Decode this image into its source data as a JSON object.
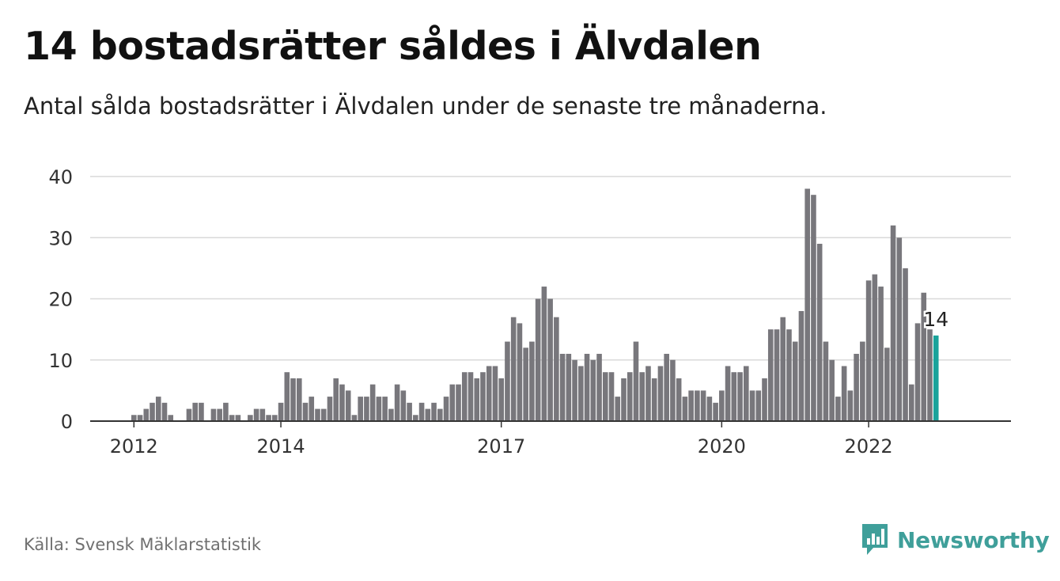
{
  "title": "14 bostadsrätter såldes i Älvdalen",
  "subtitle": "Antal sålda bostadsrätter i Älvdalen under de senaste tre månaderna.",
  "source": "Källa: Svensk Mäklarstatistik",
  "brand": {
    "name": "Newsworthy",
    "icon": "newsworthy-logo-icon",
    "color": "#3f9f9a"
  },
  "colors": {
    "bar": "#78777c",
    "highlight": "#1aa39b",
    "grid": "#d9d9d9",
    "axis": "#333333"
  },
  "chart_data": {
    "type": "bar",
    "x_axis": "monthly, 2012 to 2022",
    "ylim": [
      0,
      40
    ],
    "yticks": [
      0,
      10,
      20,
      30,
      40
    ],
    "xtick_labels": [
      {
        "label": "2012",
        "index": 7
      },
      {
        "label": "2014",
        "index": 31
      },
      {
        "label": "2017",
        "index": 67
      },
      {
        "label": "2020",
        "index": 103
      },
      {
        "label": "2022",
        "index": 127
      }
    ],
    "highlight_label": "14",
    "values": [
      0,
      0,
      0,
      0,
      0,
      0,
      0,
      1,
      1,
      2,
      3,
      4,
      3,
      1,
      0,
      0,
      2,
      3,
      3,
      0,
      2,
      2,
      3,
      1,
      1,
      0,
      1,
      2,
      2,
      1,
      1,
      3,
      8,
      7,
      7,
      3,
      4,
      2,
      2,
      4,
      7,
      6,
      5,
      1,
      4,
      4,
      6,
      4,
      4,
      2,
      6,
      5,
      3,
      1,
      3,
      2,
      3,
      2,
      4,
      6,
      6,
      8,
      8,
      7,
      8,
      9,
      9,
      7,
      13,
      17,
      16,
      12,
      13,
      20,
      22,
      20,
      17,
      11,
      11,
      10,
      9,
      11,
      10,
      11,
      8,
      8,
      4,
      7,
      8,
      13,
      8,
      9,
      7,
      9,
      11,
      10,
      7,
      4,
      5,
      5,
      5,
      4,
      3,
      5,
      9,
      8,
      8,
      9,
      5,
      5,
      7,
      15,
      15,
      17,
      15,
      13,
      18,
      38,
      37,
      29,
      13,
      10,
      4,
      9,
      5,
      11,
      13,
      23,
      24,
      22,
      12,
      32,
      30,
      25,
      6,
      16,
      21,
      15,
      14
    ],
    "grid": true
  }
}
